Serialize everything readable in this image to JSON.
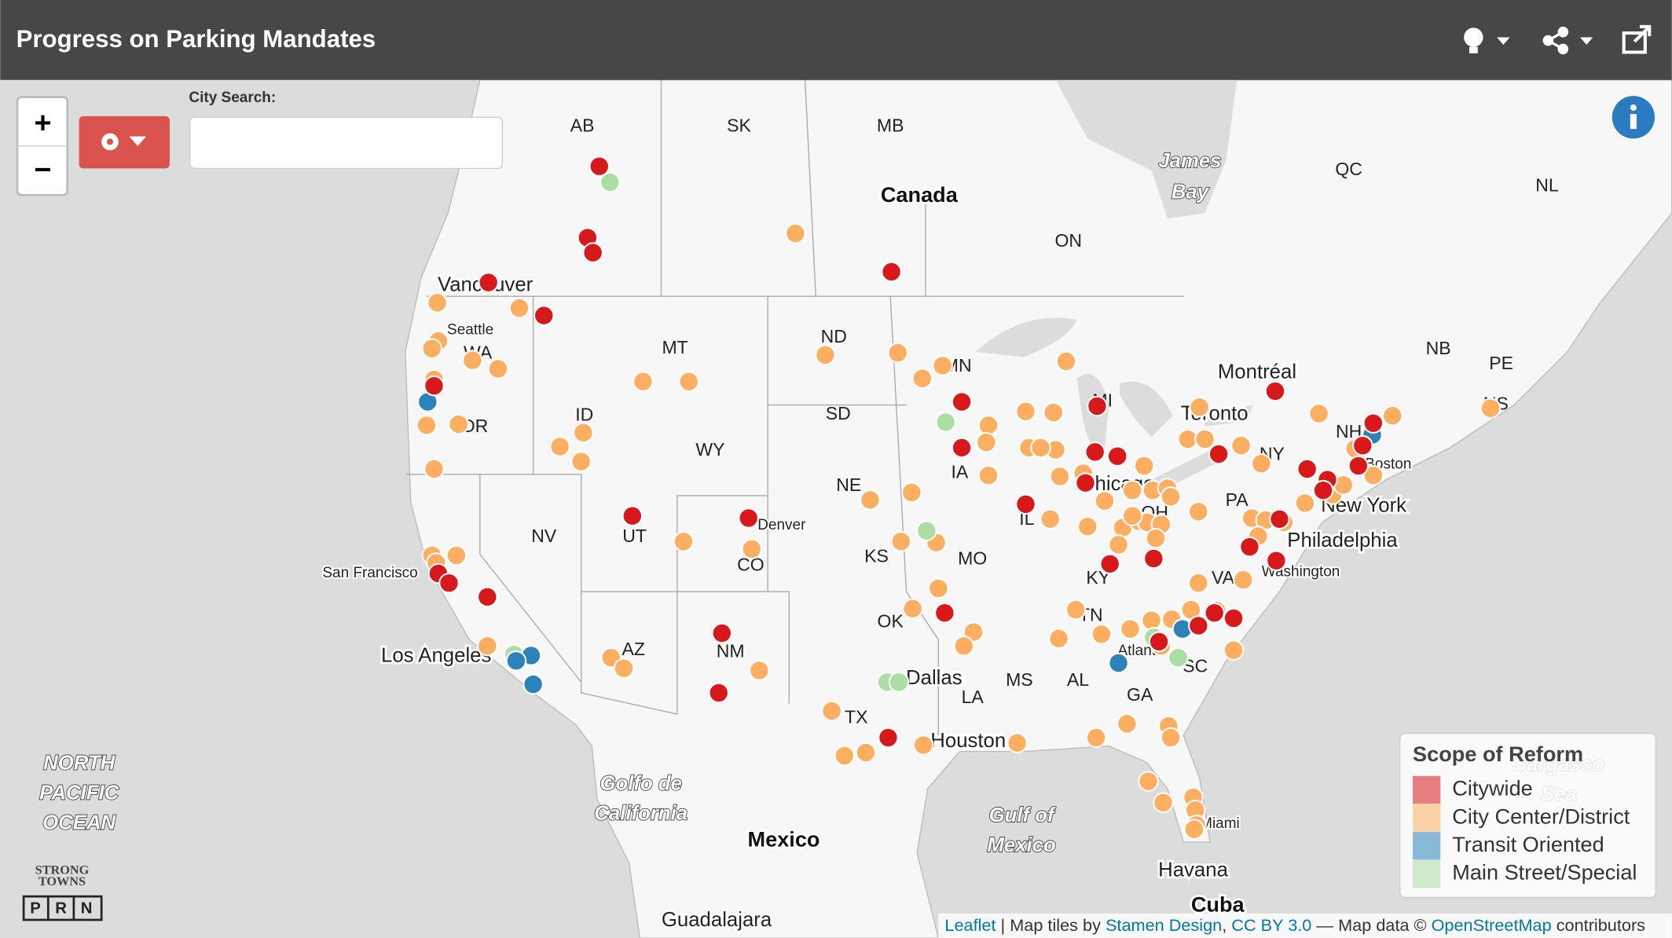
{
  "header": {
    "title": "Progress on Parking Mandates"
  },
  "search": {
    "label": "City Search:"
  },
  "zoom": {
    "in": "+",
    "out": "−"
  },
  "map_labels": [
    "AB",
    "SK",
    "MB",
    "Canada",
    "ON",
    "QC",
    "NL",
    "James",
    "Bay",
    "Vancouver",
    "Seattle",
    "WA",
    "OR",
    "ID",
    "MT",
    "ND",
    "SD",
    "WY",
    "NE",
    "UT",
    "NV",
    "CO",
    "Denver",
    "KS",
    "MO",
    "OK",
    "AZ",
    "NM",
    "TX",
    "Dallas",
    "LA",
    "Houston",
    "MS",
    "AL",
    "GA",
    "SC",
    "TN",
    "KY",
    "VA",
    "Washington",
    "Philadelphia",
    "New York",
    "PA",
    "NY",
    "Toronto",
    "Montréal",
    "NB",
    "PE",
    "NS",
    "NH",
    "Boston",
    "IL",
    "IA",
    "MN",
    "MI",
    "Chicago",
    "OH",
    "Atlanta",
    "Miami",
    "San Francisco",
    "Los Angeles",
    "Mexico",
    "Golfo de",
    "California",
    "Gulf of",
    "Mexico",
    "NORTH",
    "PACIFIC",
    "OCEAN",
    "Havana",
    "Cuba",
    "Guadalajara",
    "Sargasso",
    "Sea"
  ],
  "legend": {
    "title": "Scope of Reform",
    "items": [
      {
        "label": "Citywide",
        "color": "#d7191c"
      },
      {
        "label": "City Center/District",
        "color": "#fdae61"
      },
      {
        "label": "Transit Oriented",
        "color": "#2b83ba"
      },
      {
        "label": "Main Street/Special",
        "color": "#abdda4"
      }
    ]
  },
  "attribution": [
    "Leaflet",
    " | Map tiles by ",
    "Stamen Design",
    ", ",
    "CC BY 3.0",
    " — Map data © ",
    "OpenStreetMap",
    " contributors"
  ],
  "logo": {
    "line1": "STRONG",
    "line2": "TOWNS",
    "letters": [
      "P",
      "R",
      "N"
    ]
  }
}
